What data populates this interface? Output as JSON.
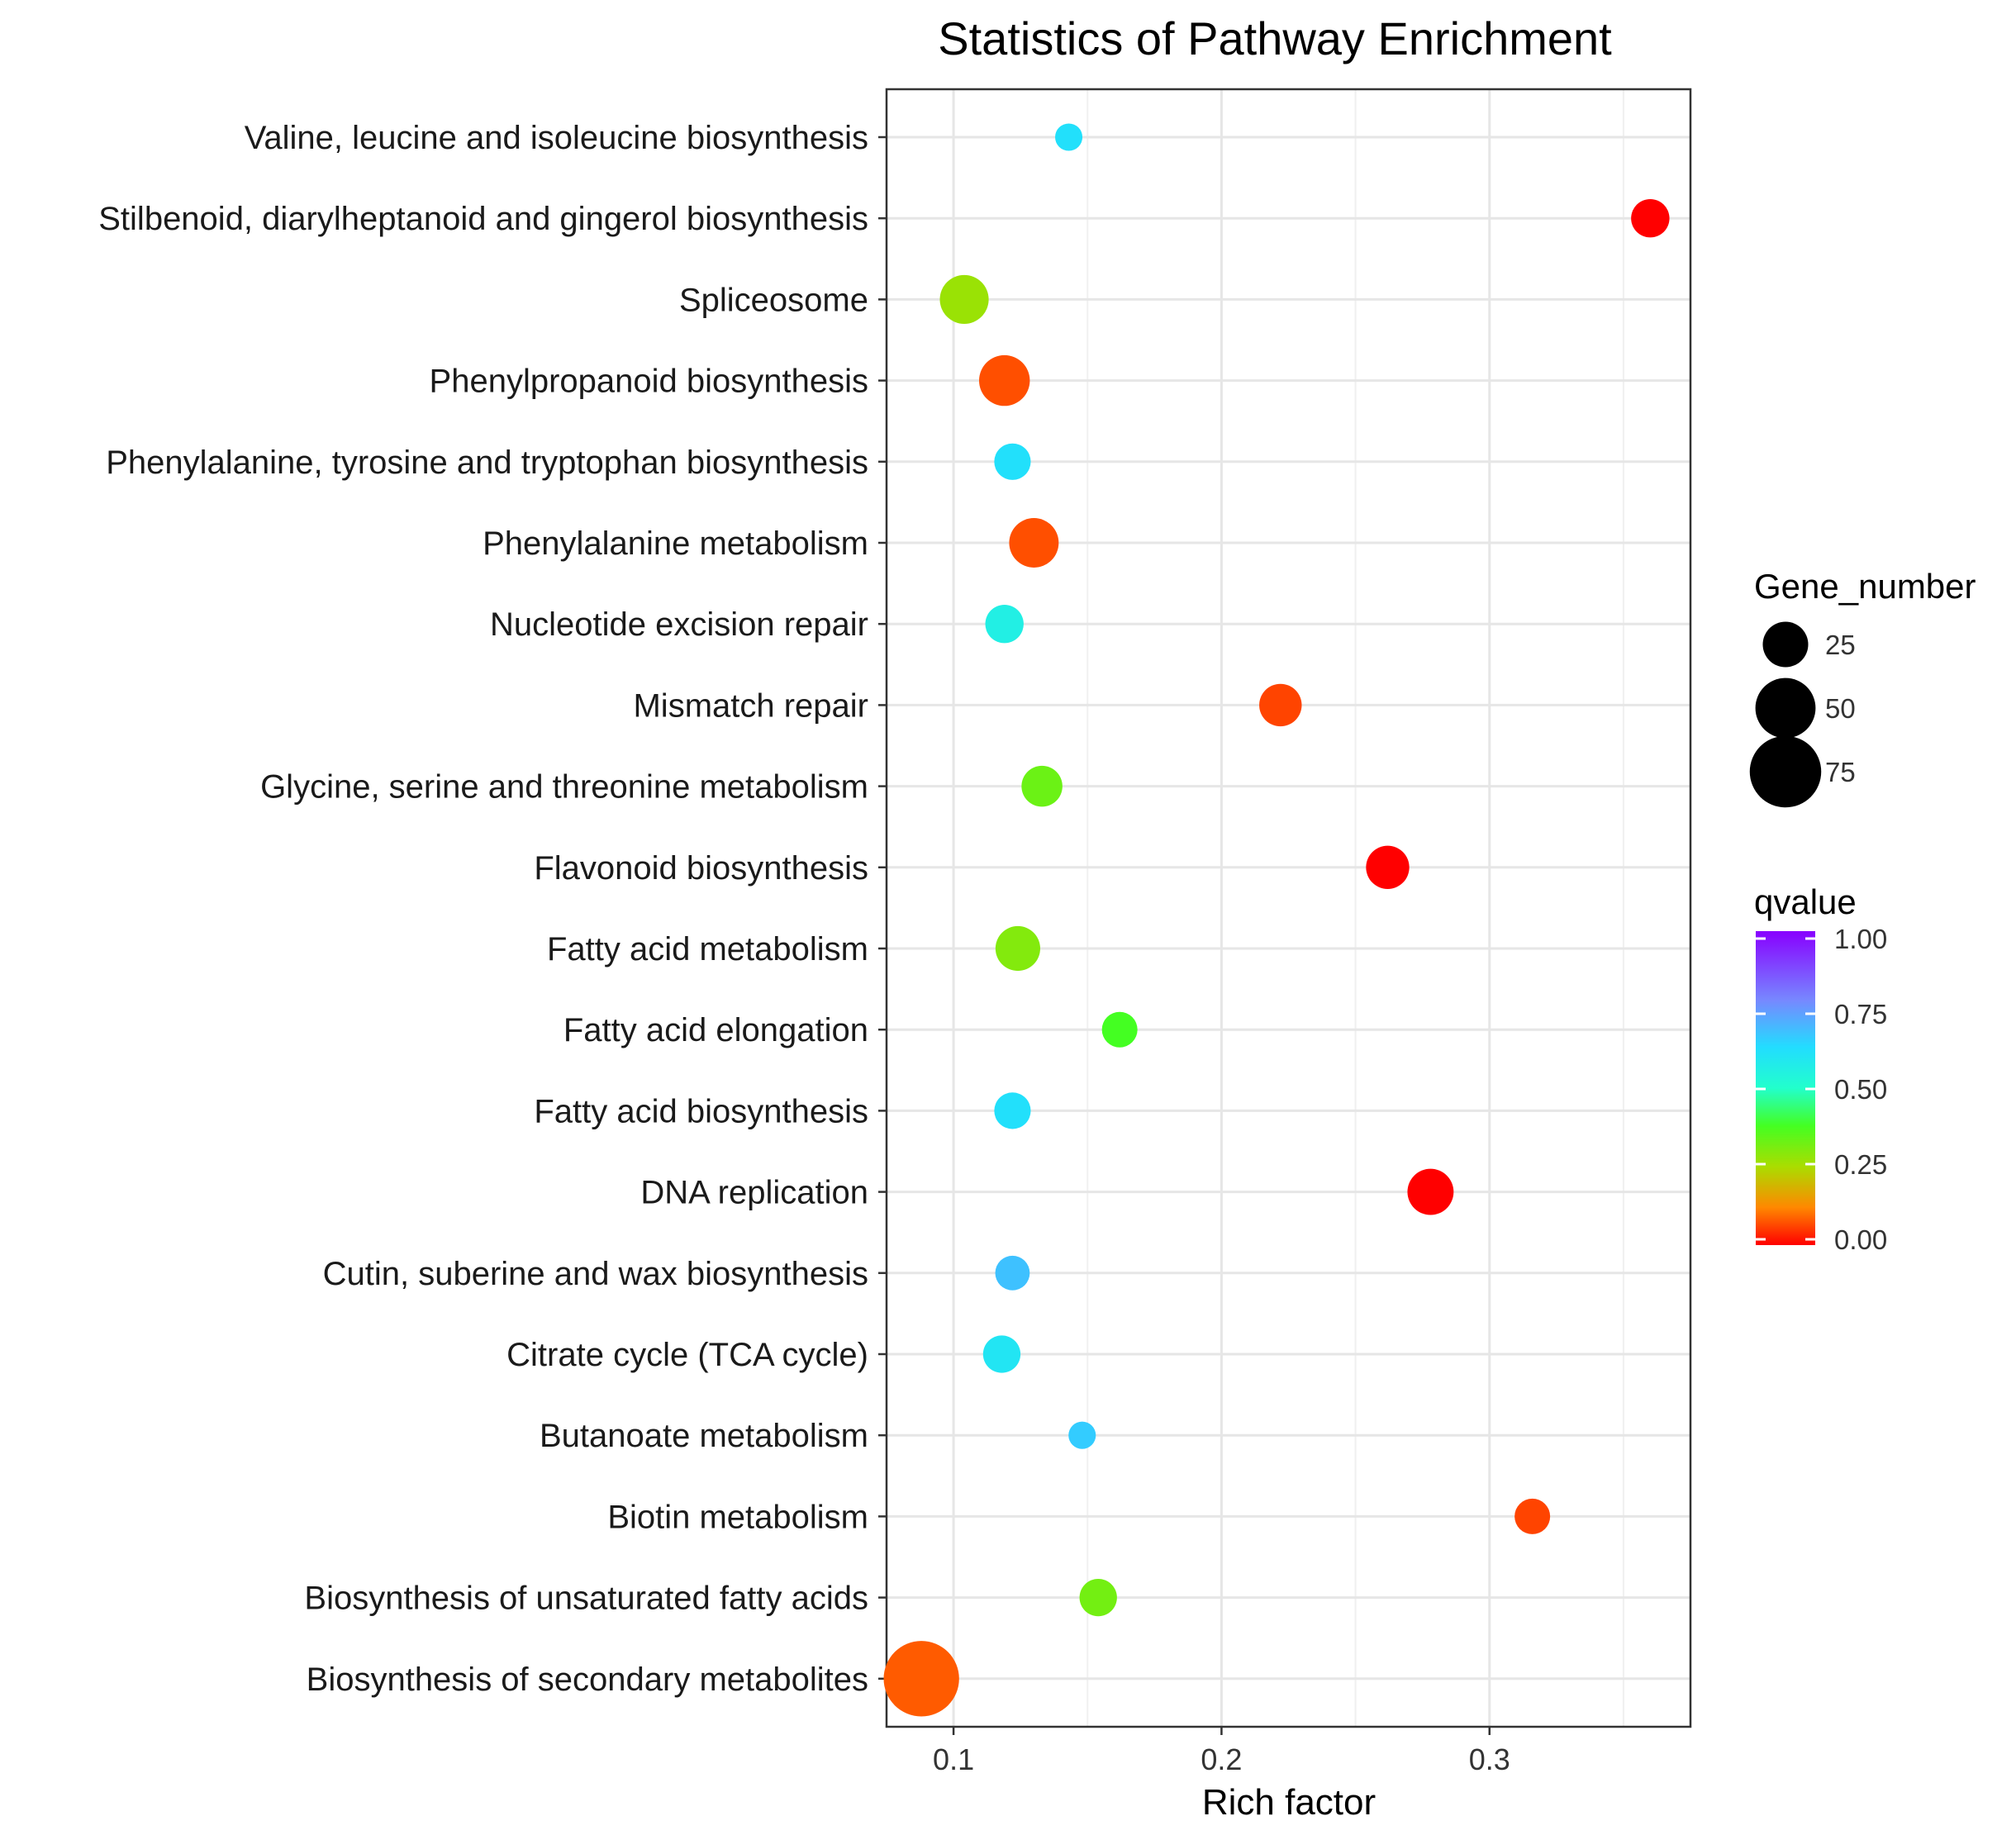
{
  "chart_data": {
    "type": "scatter",
    "title": "Statistics of Pathway Enrichment",
    "xlabel": "Rich factor",
    "ylabel": "",
    "xlim": [
      0.075,
      0.375
    ],
    "xticks": [
      0.1,
      0.2,
      0.3
    ],
    "xtick_labels": [
      "0.1",
      "0.2",
      "0.3"
    ],
    "grid": true,
    "categories": [
      "Valine, leucine and isoleucine biosynthesis",
      "Stilbenoid, diarylheptanoid and gingerol biosynthesis",
      "Spliceosome",
      "Phenylpropanoid biosynthesis",
      "Phenylalanine, tyrosine and tryptophan biosynthesis",
      "Phenylalanine metabolism",
      "Nucleotide excision repair",
      "Mismatch repair",
      "Glycine, serine and threonine metabolism",
      "Flavonoid biosynthesis",
      "Fatty acid metabolism",
      "Fatty acid elongation",
      "Fatty acid biosynthesis",
      "DNA replication",
      "Cutin, suberine and wax biosynthesis",
      "Citrate cycle (TCA cycle)",
      "Butanoate metabolism",
      "Biotin metabolism",
      "Biosynthesis of unsaturated fatty acids",
      "Biosynthesis of secondary metabolites"
    ],
    "rich_factor": [
      0.143,
      0.36,
      0.104,
      0.119,
      0.122,
      0.13,
      0.119,
      0.222,
      0.133,
      0.262,
      0.124,
      0.162,
      0.122,
      0.278,
      0.122,
      0.118,
      0.148,
      0.316,
      0.154,
      0.088
    ],
    "gene_number": [
      6,
      16,
      30,
      33,
      14,
      31,
      16,
      21,
      19,
      22,
      24,
      13,
      14,
      26,
      12,
      15,
      6,
      13,
      15,
      85
    ],
    "qvalue": [
      0.62,
      0.0,
      0.27,
      0.07,
      0.62,
      0.07,
      0.56,
      0.06,
      0.33,
      0.0,
      0.3,
      0.38,
      0.62,
      0.0,
      0.68,
      0.6,
      0.66,
      0.06,
      0.32,
      0.08
    ],
    "size_legend": {
      "title": "Gene_number",
      "values": [
        25,
        50,
        75
      ],
      "labels": [
        "25",
        "50",
        "75"
      ],
      "placement": "right"
    },
    "color_legend": {
      "title": "qvalue",
      "range": [
        0,
        1
      ],
      "ticks": [
        1.0,
        0.75,
        0.5,
        0.25,
        0.0
      ],
      "labels": [
        "1.00",
        "0.75",
        "0.50",
        "0.25",
        "0.00"
      ],
      "placement": "right"
    },
    "colors": [
      "#ff0000",
      "#ff8800",
      "#aadd00",
      "#44ff22",
      "#22ffcc",
      "#22ddff",
      "#7788ff",
      "#8800ff"
    ]
  }
}
